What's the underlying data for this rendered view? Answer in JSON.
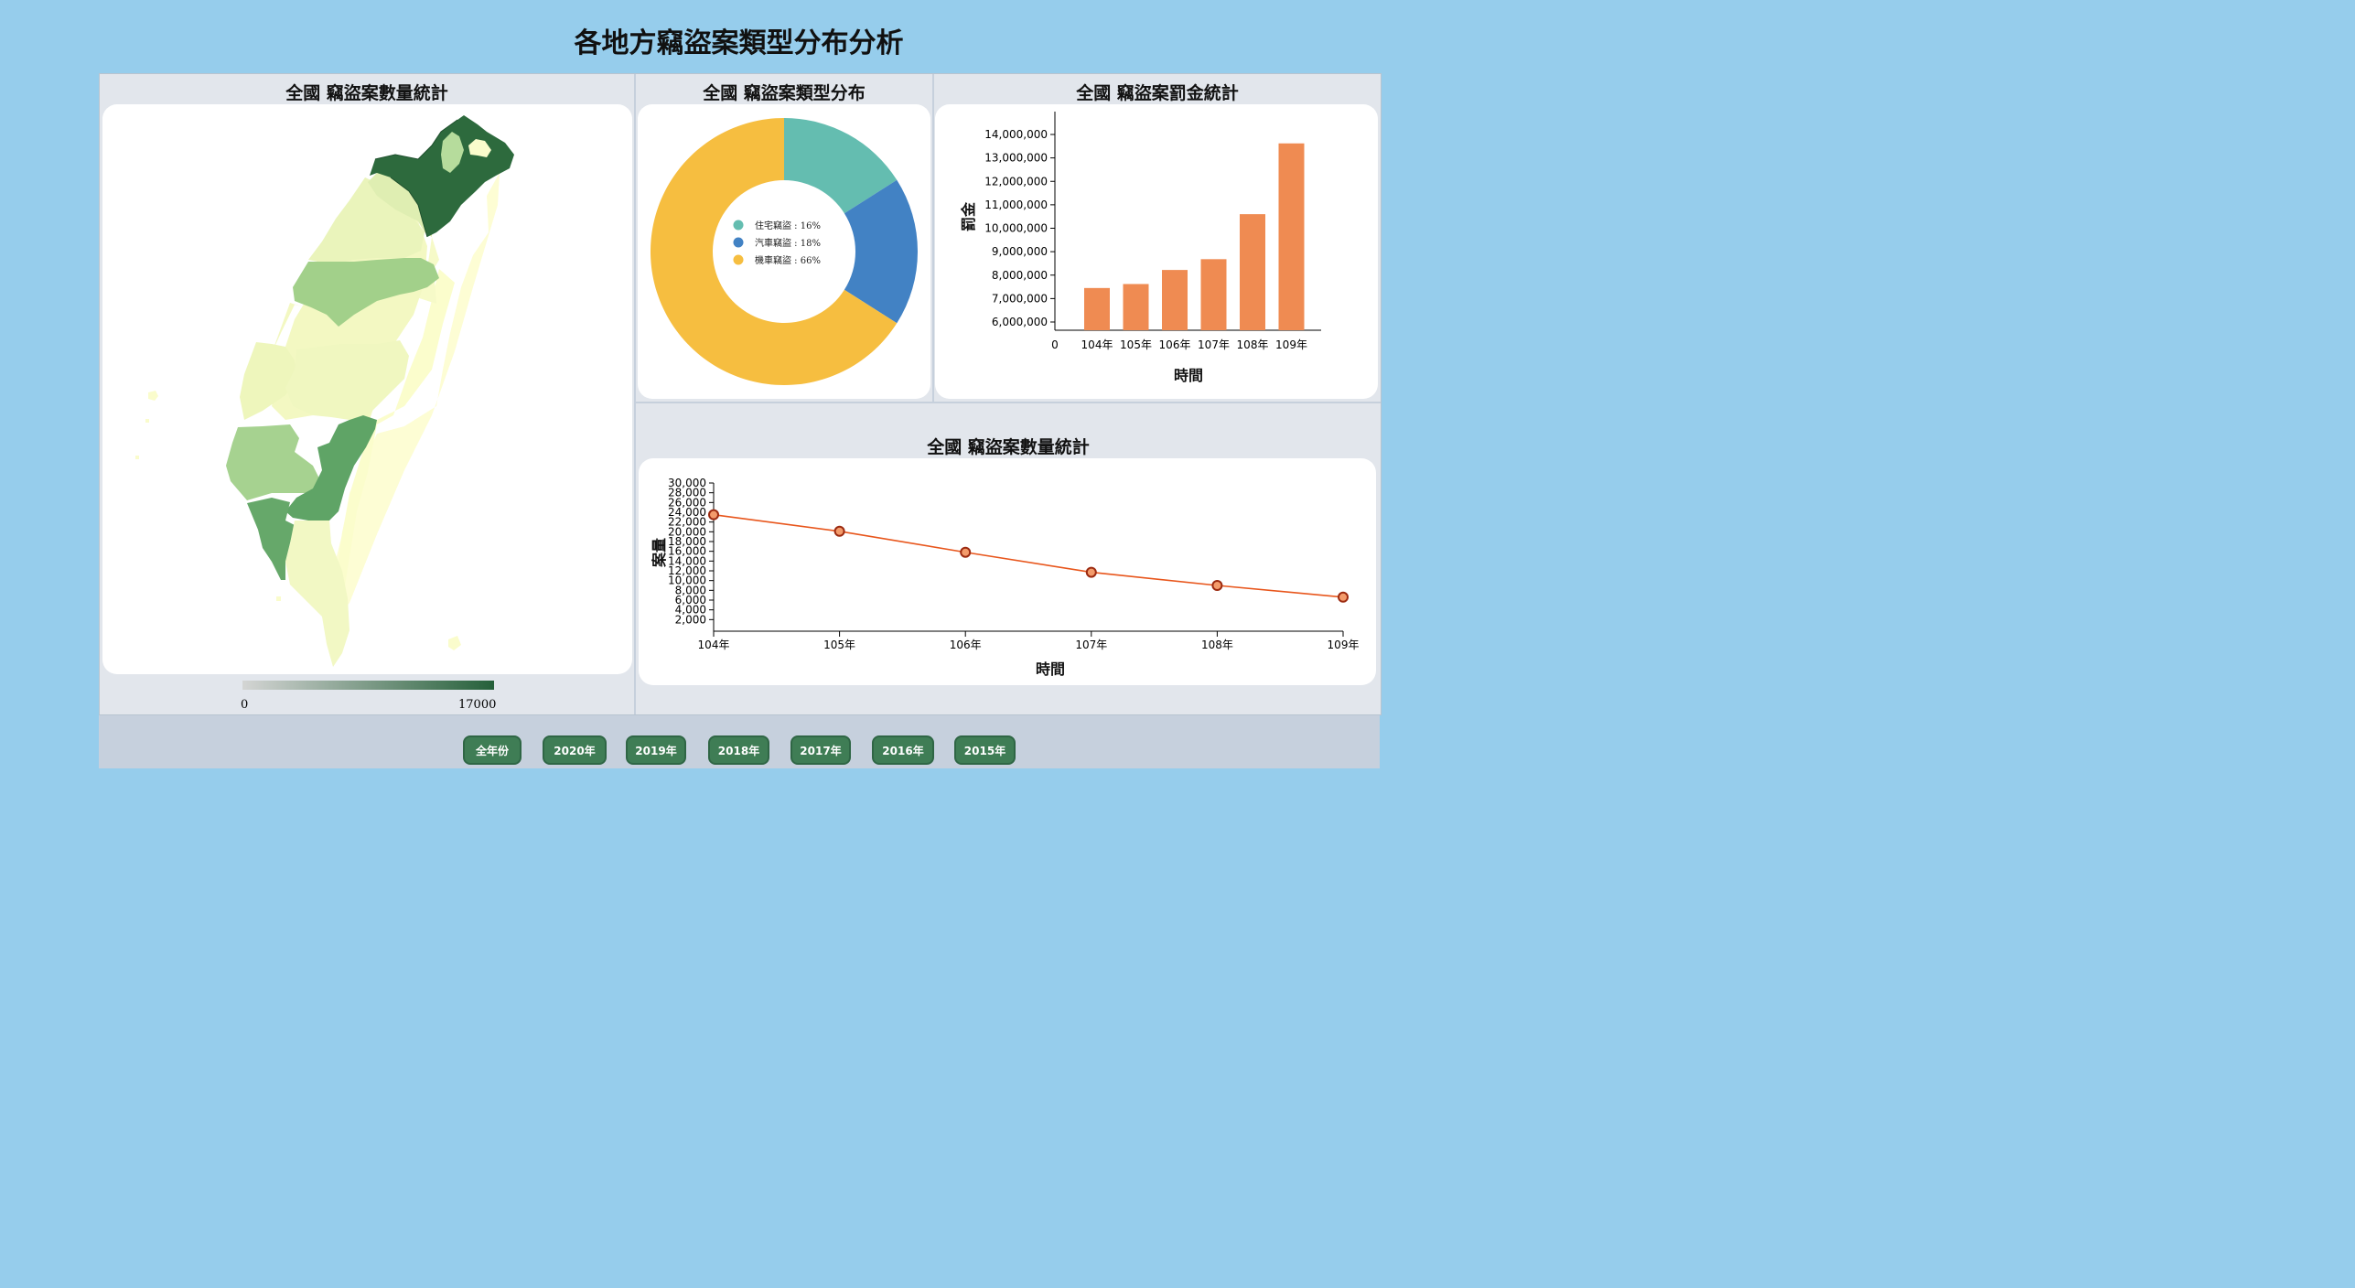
{
  "page_title": "各地方竊盜案類型分布分析",
  "map_panel": {
    "title": "全國 竊盜案數量統計",
    "legend_min": "0",
    "legend_max": "17000",
    "color_low": "#cfd2cf",
    "color_high": "#25603a"
  },
  "donut_panel": {
    "title": "全國 竊盜案類型分布"
  },
  "bar_panel": {
    "title": "全國 竊盜案罰金統計"
  },
  "line_panel": {
    "title": "全國 竊盜案數量統計"
  },
  "chart_data": [
    {
      "type": "pie",
      "title": "全國 竊盜案類型分布",
      "slices": [
        {
          "label": "住宅竊盜 : 16%",
          "value": 16,
          "color": "#64bdb0"
        },
        {
          "label": "汽車竊盜 : 18%",
          "value": 18,
          "color": "#4282c4"
        },
        {
          "label": "機車竊盜 : 66%",
          "value": 66,
          "color": "#f6be40"
        }
      ]
    },
    {
      "type": "bar",
      "title": "全國 竊盜案罰金統計",
      "categories": [
        "104年",
        "105年",
        "106年",
        "107年",
        "108年",
        "109年"
      ],
      "values": [
        7450000,
        7620000,
        8220000,
        8680000,
        10600000,
        13620000
      ],
      "xlabel": "時間",
      "ylabel": "罰金",
      "ylim": [
        6000000,
        14000000
      ],
      "yticks": [
        "6,000,000",
        "7,000,000",
        "8,000,000",
        "9,000,000",
        "10,000,000",
        "11,000,000",
        "12,000,000",
        "13,000,000",
        "14,000,000"
      ],
      "x_origin_label": "0",
      "color": "#ef8b52"
    },
    {
      "type": "line",
      "title": "全國 竊盜案數量統計",
      "categories": [
        "104年",
        "105年",
        "106年",
        "107年",
        "108年",
        "109年"
      ],
      "values": [
        23500,
        20100,
        15800,
        11700,
        9000,
        6600
      ],
      "xlabel": "時間",
      "ylabel": "案量",
      "ylim": [
        0,
        30000
      ],
      "yticks": [
        "2,000",
        "4,000",
        "6,000",
        "8,000",
        "10,000",
        "12,000",
        "14,000",
        "16,000",
        "18,000",
        "20,000",
        "22,000",
        "24,000",
        "26,000",
        "28,000",
        "30,000"
      ],
      "color": "#e8561c"
    }
  ],
  "year_buttons": [
    "全年份",
    "2020年",
    "2019年",
    "2018年",
    "2017年",
    "2016年",
    "2015年"
  ]
}
